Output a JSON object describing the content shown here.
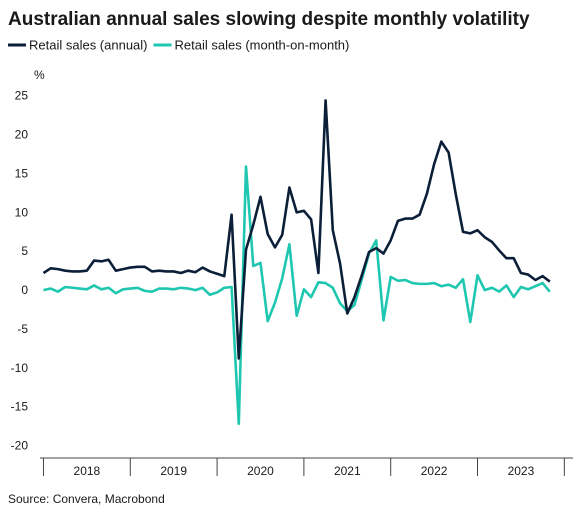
{
  "chart_data": {
    "type": "line",
    "title": "Australian annual sales slowing despite monthly volatility",
    "y_unit": "%",
    "source": "Source: Convera, Macrobond",
    "x": [
      2018,
      2018.083,
      2018.167,
      2018.25,
      2018.333,
      2018.417,
      2018.5,
      2018.583,
      2018.667,
      2018.75,
      2018.833,
      2018.917,
      2019,
      2019.083,
      2019.167,
      2019.25,
      2019.333,
      2019.417,
      2019.5,
      2019.583,
      2019.667,
      2019.75,
      2019.833,
      2019.917,
      2020,
      2020.083,
      2020.167,
      2020.25,
      2020.333,
      2020.417,
      2020.5,
      2020.583,
      2020.667,
      2020.75,
      2020.833,
      2020.917,
      2021,
      2021.083,
      2021.167,
      2021.25,
      2021.333,
      2021.417,
      2021.5,
      2021.583,
      2021.667,
      2021.75,
      2021.833,
      2021.917,
      2022,
      2022.083,
      2022.167,
      2022.25,
      2022.333,
      2022.417,
      2022.5,
      2022.583,
      2022.667,
      2022.75,
      2022.833,
      2022.917,
      2023,
      2023.083,
      2023.167,
      2023.25,
      2023.333,
      2023.417,
      2023.5,
      2023.583,
      2023.667,
      2023.75,
      2023.833
    ],
    "series": [
      {
        "name": "Retail sales (annual)",
        "color": "#0c1f38",
        "values": [
          2.3,
          2.9,
          2.8,
          2.6,
          2.5,
          2.5,
          2.6,
          3.9,
          3.8,
          4.0,
          2.6,
          2.8,
          3.0,
          3.1,
          3.1,
          2.5,
          2.6,
          2.5,
          2.5,
          2.3,
          2.6,
          2.4,
          3.0,
          2.5,
          2.2,
          1.9,
          9.8,
          -8.7,
          5.3,
          8.5,
          12.1,
          7.3,
          5.6,
          7.2,
          13.3,
          10.1,
          10.3,
          9.2,
          2.3,
          24.5,
          7.8,
          3.5,
          -2.9,
          -0.8,
          2.0,
          5.0,
          5.5,
          4.8,
          6.5,
          9.0,
          9.3,
          9.3,
          9.8,
          12.5,
          16.3,
          19.2,
          17.8,
          12.4,
          7.6,
          7.4,
          7.8,
          6.9,
          6.3,
          5.2,
          4.2,
          4.2,
          2.3,
          2.1,
          1.4,
          1.9,
          1.2
        ]
      },
      {
        "name": "Retail sales (month-on-month)",
        "color": "#1fc7b0",
        "values": [
          0.1,
          0.3,
          -0.1,
          0.5,
          0.4,
          0.3,
          0.2,
          0.7,
          0.2,
          0.4,
          -0.3,
          0.2,
          0.3,
          0.4,
          0.0,
          -0.1,
          0.3,
          0.3,
          0.2,
          0.4,
          0.3,
          0.1,
          0.4,
          -0.5,
          -0.2,
          0.4,
          0.5,
          -17.1,
          16.0,
          3.2,
          3.6,
          -3.9,
          -1.5,
          1.6,
          6.0,
          -3.2,
          0.2,
          -0.8,
          1.1,
          1.0,
          0.4,
          -1.6,
          -2.6,
          -1.8,
          1.5,
          4.8,
          6.5,
          -3.8,
          1.8,
          1.3,
          1.4,
          1.0,
          0.9,
          0.9,
          1.0,
          0.6,
          0.8,
          0.4,
          1.5,
          -4.0,
          2.0,
          0.1,
          0.4,
          -0.1,
          0.7,
          -0.8,
          0.5,
          0.2,
          0.6,
          1.0,
          -0.1
        ]
      }
    ],
    "xlim": [
      2017.96,
      2024.1
    ],
    "xticks": [
      2018,
      2019,
      2020,
      2021,
      2022,
      2023,
      2024
    ],
    "year_labels": [
      2018,
      2019,
      2020,
      2021,
      2022,
      2023
    ],
    "ylim": [
      -21.5,
      27
    ],
    "yticks": [
      -20,
      -15,
      -10,
      -5,
      0,
      5,
      10,
      15,
      20,
      25
    ],
    "grid": false,
    "legend": "top-left"
  }
}
